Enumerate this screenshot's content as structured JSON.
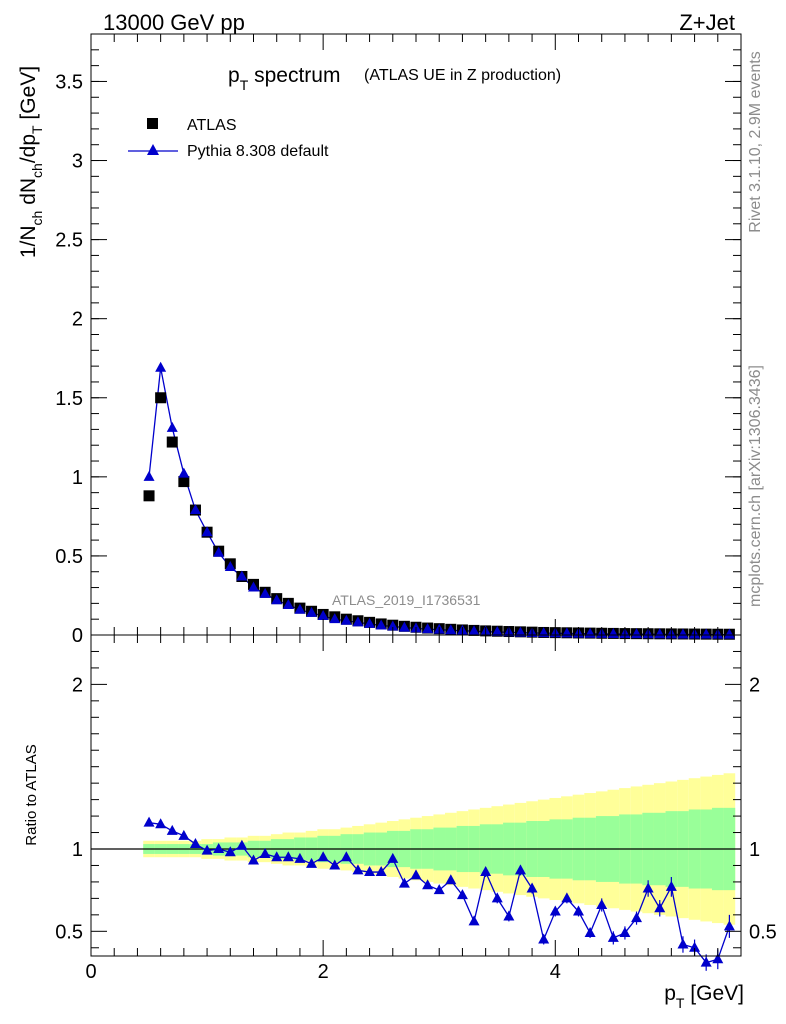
{
  "header": {
    "left_label": "13000 GeV pp",
    "right_label": "Z+Jet"
  },
  "side_labels": {
    "rivet": "Rivet 3.1.10,  2.9M events",
    "mcplots": "mcplots.cern.ch [arXiv:1306.3436]"
  },
  "watermark": "ATLAS_2019_I1736531",
  "title": {
    "main": "p",
    "sub": "T",
    "rest": " spectrum",
    "suffix": "(ATLAS UE in Z production)"
  },
  "legend": {
    "data_label": "ATLAS",
    "mc_label": "Pythia 8.308 default",
    "placement": "top-left"
  },
  "colors": {
    "mc": "#0000cc",
    "band_inner": "#99ff99",
    "band_outer": "#ffff99",
    "data": "#000000"
  },
  "axes": {
    "ylabel_main": "1/N_ch dN_ch/dp_T [GeV]",
    "ylabel_ratio": "Ratio to ATLAS",
    "xlabel": "p_T [GeV]",
    "x_ticks": [
      "0",
      "2",
      "4"
    ],
    "y_ticks_main": [
      "0",
      "0.5",
      "1",
      "1.5",
      "2",
      "2.5",
      "3",
      "3.5"
    ],
    "y_ticks_ratio": [
      "0.5",
      "1",
      "2"
    ]
  },
  "chart_data": {
    "type": "scatter",
    "xlim": [
      0,
      5.6
    ],
    "ylim": [
      0,
      3.8
    ],
    "ratio_ylim": [
      0.35,
      2.3
    ],
    "x": [
      0.5,
      0.6,
      0.7,
      0.8,
      0.9,
      1.0,
      1.1,
      1.2,
      1.3,
      1.4,
      1.5,
      1.6,
      1.7,
      1.8,
      1.9,
      2.0,
      2.1,
      2.2,
      2.3,
      2.4,
      2.5,
      2.6,
      2.7,
      2.8,
      2.9,
      3.0,
      3.1,
      3.2,
      3.3,
      3.4,
      3.5,
      3.6,
      3.7,
      3.8,
      3.9,
      4.0,
      4.1,
      4.2,
      4.3,
      4.4,
      4.5,
      4.6,
      4.7,
      4.8,
      4.9,
      5.0,
      5.1,
      5.2,
      5.3,
      5.4,
      5.5
    ],
    "series": [
      {
        "name": "ATLAS",
        "values": [
          0.88,
          1.5,
          1.22,
          0.97,
          0.79,
          0.65,
          0.53,
          0.45,
          0.37,
          0.32,
          0.27,
          0.23,
          0.2,
          0.17,
          0.15,
          0.13,
          0.115,
          0.1,
          0.09,
          0.08,
          0.07,
          0.062,
          0.055,
          0.049,
          0.044,
          0.04,
          0.036,
          0.032,
          0.029,
          0.026,
          0.024,
          0.022,
          0.02,
          0.018,
          0.016,
          0.015,
          0.014,
          0.013,
          0.012,
          0.011,
          0.01,
          0.009,
          0.0085,
          0.008,
          0.0075,
          0.007,
          0.0065,
          0.006,
          0.0055,
          0.005,
          0.0048
        ]
      },
      {
        "name": "Pythia 8.308 default",
        "values": [
          1.0,
          1.69,
          1.31,
          1.02,
          0.79,
          0.65,
          0.52,
          0.43,
          0.37,
          0.3,
          0.26,
          0.22,
          0.19,
          0.16,
          0.14,
          0.12,
          0.1,
          0.09,
          0.08,
          0.07,
          0.06,
          0.054,
          0.047,
          0.042,
          0.037,
          0.034,
          0.03,
          0.027,
          0.024,
          0.021,
          0.019,
          0.017,
          0.015,
          0.013,
          0.012,
          0.011,
          0.01,
          0.009,
          0.008,
          0.007,
          0.0065,
          0.006,
          0.0055,
          0.005,
          0.0045,
          0.004,
          0.0035,
          0.003,
          0.0028,
          0.0025,
          0.0022
        ]
      }
    ],
    "ratio": {
      "values": [
        1.16,
        1.15,
        1.11,
        1.08,
        1.03,
        0.99,
        1.0,
        0.98,
        1.02,
        0.93,
        0.97,
        0.95,
        0.95,
        0.94,
        0.91,
        0.95,
        0.9,
        0.95,
        0.87,
        0.86,
        0.86,
        0.94,
        0.79,
        0.84,
        0.78,
        0.75,
        0.81,
        0.72,
        0.56,
        0.86,
        0.7,
        0.59,
        0.87,
        0.76,
        0.45,
        0.62,
        0.7,
        0.62,
        0.49,
        0.66,
        0.46,
        0.49,
        0.58,
        0.76,
        0.64,
        0.77,
        0.42,
        0.4,
        0.31,
        0.33,
        0.53
      ],
      "errors": [
        0.01,
        0.01,
        0.01,
        0.01,
        0.01,
        0.01,
        0.01,
        0.01,
        0.01,
        0.01,
        0.01,
        0.01,
        0.01,
        0.01,
        0.01,
        0.01,
        0.01,
        0.01,
        0.01,
        0.01,
        0.015,
        0.015,
        0.015,
        0.015,
        0.015,
        0.02,
        0.02,
        0.02,
        0.02,
        0.03,
        0.03,
        0.03,
        0.03,
        0.03,
        0.03,
        0.03,
        0.03,
        0.03,
        0.03,
        0.04,
        0.04,
        0.04,
        0.04,
        0.05,
        0.05,
        0.06,
        0.05,
        0.05,
        0.05,
        0.06,
        0.07
      ],
      "band_inner": [
        0.03,
        0.03,
        0.03,
        0.03,
        0.03,
        0.03,
        0.04,
        0.04,
        0.04,
        0.05,
        0.05,
        0.06,
        0.06,
        0.07,
        0.07,
        0.08,
        0.08,
        0.09,
        0.09,
        0.1,
        0.1,
        0.11,
        0.11,
        0.12,
        0.12,
        0.13,
        0.13,
        0.14,
        0.14,
        0.15,
        0.15,
        0.16,
        0.16,
        0.17,
        0.17,
        0.18,
        0.18,
        0.19,
        0.19,
        0.2,
        0.2,
        0.21,
        0.21,
        0.22,
        0.22,
        0.23,
        0.23,
        0.24,
        0.24,
        0.25,
        0.25
      ],
      "band_outer": [
        0.05,
        0.05,
        0.05,
        0.05,
        0.05,
        0.06,
        0.06,
        0.07,
        0.07,
        0.08,
        0.08,
        0.09,
        0.1,
        0.1,
        0.11,
        0.12,
        0.12,
        0.13,
        0.14,
        0.15,
        0.16,
        0.17,
        0.18,
        0.19,
        0.2,
        0.21,
        0.22,
        0.23,
        0.24,
        0.25,
        0.26,
        0.27,
        0.28,
        0.29,
        0.3,
        0.31,
        0.32,
        0.33,
        0.34,
        0.35,
        0.36,
        0.37,
        0.38,
        0.39,
        0.4,
        0.41,
        0.42,
        0.43,
        0.44,
        0.45,
        0.46
      ]
    }
  }
}
